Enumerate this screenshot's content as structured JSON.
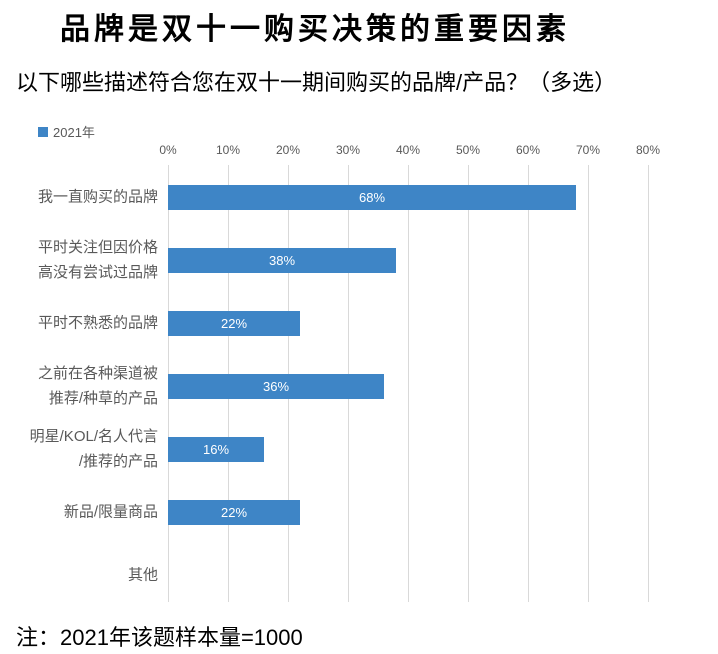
{
  "header": {
    "title": "品牌是双十一购买决策的重要因素",
    "subtitle": "以下哪些描述符合您在双十一期间购买的品牌/产品？（多选）"
  },
  "legend": {
    "label": "2021年"
  },
  "footnote": "注：2021年该题样本量=1000",
  "colors": {
    "bar": "#3E85C6",
    "gridline": "#D9D9D9",
    "axis_text": "#595959",
    "bar_label_text": "#FFFFFF"
  },
  "chart_data": {
    "type": "bar",
    "orientation": "horizontal",
    "title": "品牌是双十一购买决策的重要因素",
    "subtitle": "以下哪些描述符合您在双十一期间购买的品牌/产品？（多选）",
    "xlabel": "",
    "ylabel": "",
    "xlim": [
      0,
      80
    ],
    "grid": true,
    "legend_position": "top-left",
    "x_ticks": [
      "0%",
      "10%",
      "20%",
      "30%",
      "40%",
      "50%",
      "60%",
      "70%",
      "80%"
    ],
    "series_name": "2021年",
    "categories": [
      {
        "label": "我一直购买的品牌",
        "lines": [
          "我一直购买的品牌"
        ],
        "value": 68,
        "value_label": "68%"
      },
      {
        "label": "平时关注但因价格高没有尝试过品牌",
        "lines": [
          "平时关注但因价格",
          "高没有尝试过品牌"
        ],
        "value": 38,
        "value_label": "38%"
      },
      {
        "label": "平时不熟悉的品牌",
        "lines": [
          "平时不熟悉的品牌"
        ],
        "value": 22,
        "value_label": "22%"
      },
      {
        "label": "之前在各种渠道被推荐/种草的产品",
        "lines": [
          "之前在各种渠道被",
          "推荐/种草的产品"
        ],
        "value": 36,
        "value_label": "36%"
      },
      {
        "label": "明星/KOL/名人代言/推荐的产品",
        "lines": [
          "明星/KOL/名人代言",
          "/推荐的产品"
        ],
        "value": 16,
        "value_label": "16%"
      },
      {
        "label": "新品/限量商品",
        "lines": [
          "新品/限量商品"
        ],
        "value": 22,
        "value_label": "22%"
      },
      {
        "label": "其他",
        "lines": [
          "其他"
        ],
        "value": 0,
        "value_label": ""
      }
    ],
    "footnote": "注：2021年该题样本量=1000"
  }
}
